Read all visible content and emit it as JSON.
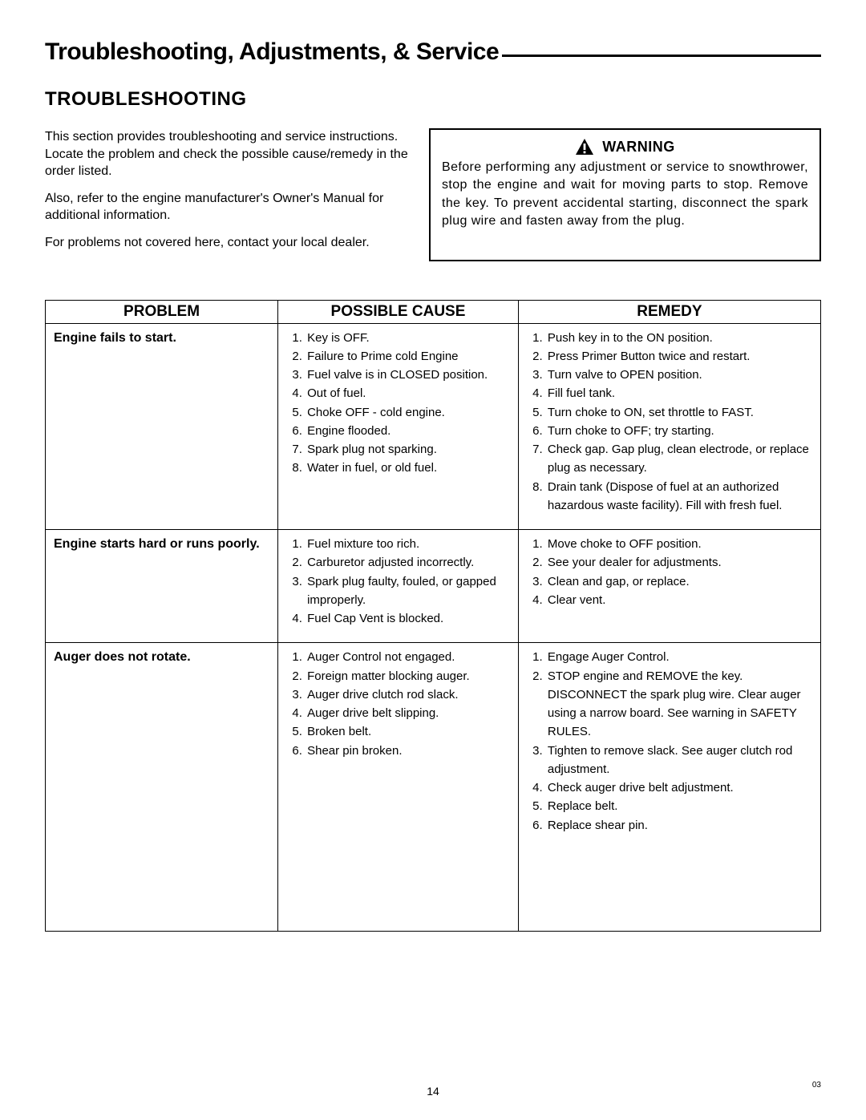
{
  "page": {
    "title": "Troubleshooting, Adjustments, & Service",
    "section_heading": "TROUBLESHOOTING",
    "page_number": "14",
    "rev": "03"
  },
  "intro": {
    "p1": "This section provides troubleshooting and service instructions. Locate the problem and check the possible cause/remedy in the order listed.",
    "p2": "Also, refer to the engine manufacturer's Owner's Manual for additional information.",
    "p3": "For problems not covered here, contact your local dealer."
  },
  "warning": {
    "label": "WARNING",
    "body": "Before performing any adjustment or service to snowthrower, stop the engine and wait for moving parts to stop. Remove the key. To prevent accidental starting, disconnect the spark plug wire and fasten away from the plug."
  },
  "table": {
    "headers": {
      "problem": "PROBLEM",
      "cause": "POSSIBLE CAUSE",
      "remedy": "REMEDY"
    },
    "rows": [
      {
        "problem": "Engine fails to start.",
        "causes": [
          "Key is OFF.",
          "Failure to Prime cold Engine",
          "Fuel valve is in CLOSED position.",
          "Out of fuel.",
          "Choke OFF - cold engine.",
          "Engine flooded.",
          "Spark plug not sparking.",
          "Water in fuel, or old  fuel."
        ],
        "remedies": [
          "Push key in to the ON position.",
          "Press Primer Button twice and restart.",
          "Turn valve to OPEN position.",
          "Fill fuel tank.",
          "Turn choke to ON, set throttle to FAST.",
          "Turn choke to OFF; try starting.",
          "Check gap. Gap plug, clean electrode, or replace plug as necessary.",
          "Drain tank (Dispose of fuel at an authorized hazardous waste facility). Fill with fresh fuel."
        ]
      },
      {
        "problem": "Engine starts hard or runs poorly.",
        "causes": [
          "Fuel mixture too rich.",
          "Carburetor adjusted incorrectly.",
          "Spark plug faulty, fouled, or gapped improperly.",
          "Fuel Cap Vent is blocked."
        ],
        "remedies": [
          "Move choke to OFF position.",
          "See your dealer for adjustments.",
          "Clean and gap, or replace.",
          "Clear vent."
        ]
      },
      {
        "problem": "Auger does not rotate.",
        "causes": [
          "Auger Control not engaged.",
          "Foreign matter blocking auger.",
          "Auger drive clutch rod slack.",
          "Auger drive belt slipping.",
          "Broken belt.",
          "Shear pin broken."
        ],
        "remedies": [
          "Engage Auger Control.",
          "STOP engine and REMOVE the key. DISCONNECT the spark plug wire. Clear auger using a narrow board. See warning in SAFETY RULES.",
          "Tighten to remove slack. See auger clutch rod adjustment.",
          "Check auger drive belt adjustment.",
          "Replace belt.",
          "Replace shear pin."
        ]
      }
    ]
  }
}
